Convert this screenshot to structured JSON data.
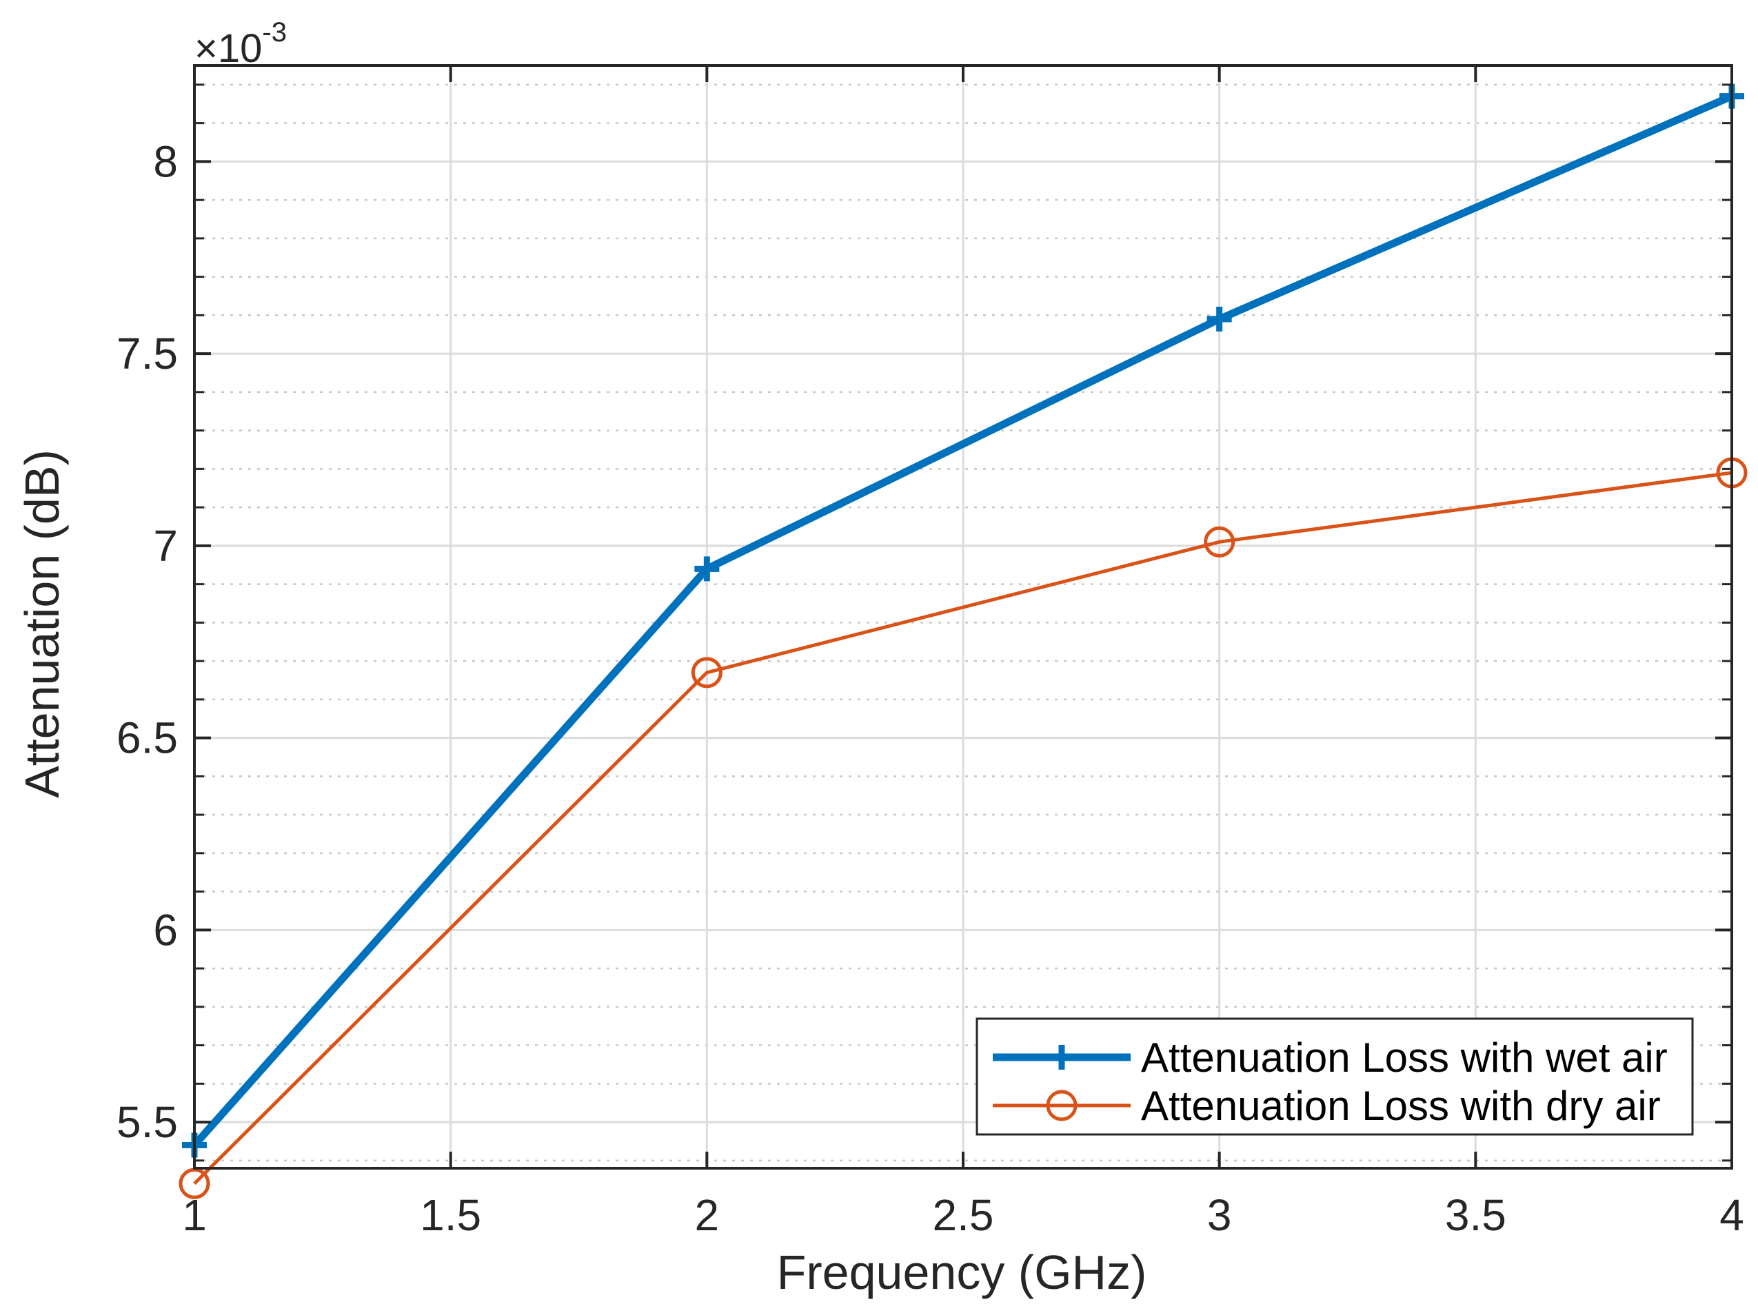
{
  "chart_data": {
    "type": "line",
    "title": "",
    "xlabel": "Frequency (GHz)",
    "ylabel": "Attenuation (dB)",
    "xlim": [
      1,
      4
    ],
    "ylim": [
      5.38,
      8.25
    ],
    "y_scale_exponent_label": {
      "prefix": "×10",
      "exponent": "-3"
    },
    "grid": true,
    "minor_grid": true,
    "xticks": [
      1,
      1.5,
      2,
      2.5,
      3,
      3.5,
      4
    ],
    "xtick_labels": [
      "1",
      "1.5",
      "2",
      "2.5",
      "3",
      "3.5",
      "4"
    ],
    "yticks": [
      5.5,
      6,
      6.5,
      7,
      7.5,
      8
    ],
    "ytick_labels": [
      "5.5",
      "6",
      "6.5",
      "7",
      "7.5",
      "8"
    ],
    "x": [
      1,
      2,
      3,
      4
    ],
    "series": [
      {
        "name": "Attenuation Loss with wet air",
        "values": [
          5.44,
          6.94,
          7.59,
          8.17
        ],
        "color": "#0072BD",
        "marker": "plus",
        "line_weight": "thick"
      },
      {
        "name": "Attenuation Loss with dry air",
        "values": [
          5.34,
          6.67,
          7.01,
          7.19
        ],
        "color": "#D95319",
        "marker": "circle",
        "line_weight": "normal"
      }
    ],
    "legend_position": "bottom-right"
  }
}
